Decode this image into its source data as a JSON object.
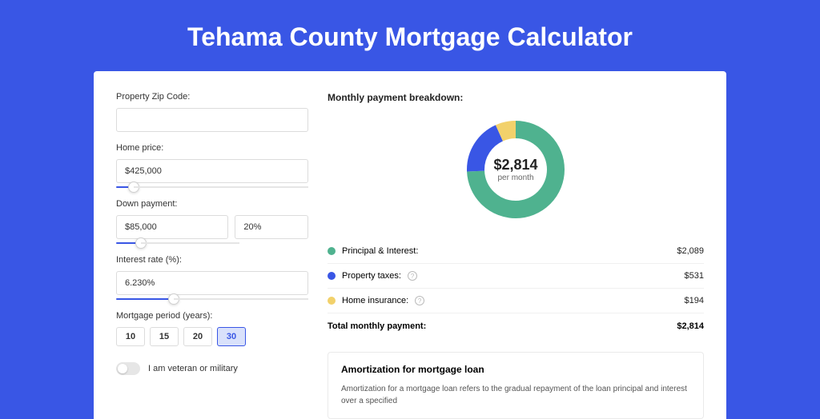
{
  "page": {
    "title": "Tehama County Mortgage Calculator",
    "background_color": "#3956e5",
    "card_bg": "#ffffff"
  },
  "form": {
    "zip_label": "Property Zip Code:",
    "zip_value": "",
    "home_price_label": "Home price:",
    "home_price_value": "$425,000",
    "home_price_slider_pct": 9,
    "down_payment_label": "Down payment:",
    "down_payment_value": "$85,000",
    "down_payment_pct": "20%",
    "down_payment_slider_pct": 20,
    "interest_label": "Interest rate (%):",
    "interest_value": "6.230%",
    "interest_slider_pct": 30,
    "period_label": "Mortgage period (years):",
    "periods": [
      "10",
      "15",
      "20",
      "30"
    ],
    "period_selected": "30",
    "veteran_label": "I am veteran or military"
  },
  "breakdown": {
    "title": "Monthly payment breakdown:",
    "donut": {
      "value": "$2,814",
      "sub": "per month",
      "segments": [
        {
          "label": "Principal & Interest:",
          "value": "$2,089",
          "pct": 74.2,
          "color": "#4fb28f"
        },
        {
          "label": "Property taxes:",
          "value": "$531",
          "pct": 18.9,
          "color": "#3956e5",
          "has_info": true
        },
        {
          "label": "Home insurance:",
          "value": "$194",
          "pct": 6.9,
          "color": "#f2d16b",
          "has_info": true
        }
      ],
      "stroke_width": 22
    },
    "total_label": "Total monthly payment:",
    "total_value": "$2,814"
  },
  "amortization": {
    "title": "Amortization for mortgage loan",
    "text": "Amortization for a mortgage loan refers to the gradual repayment of the loan principal and interest over a specified"
  }
}
